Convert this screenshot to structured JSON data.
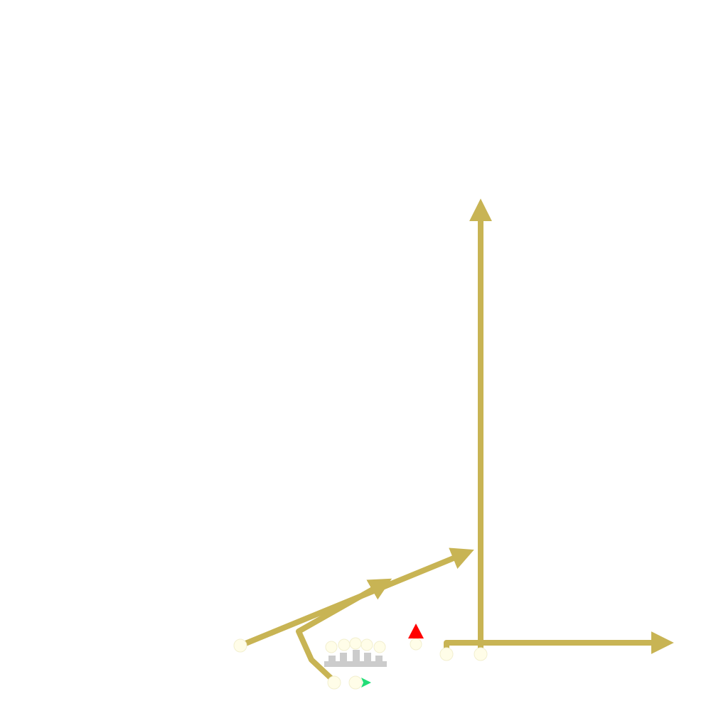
{
  "diagram": {
    "colors": {
      "background": "#ffffff",
      "route": "#c8b454",
      "node": "#fffde8",
      "node_outline": "#f2efcf",
      "defender": "#cccccc",
      "ball_marker": "#ff0000",
      "player_marker": "#22dd77"
    },
    "routes": [
      {
        "name": "route-vertical",
        "style": "arrow"
      },
      {
        "name": "route-flat-right",
        "style": "arrow"
      },
      {
        "name": "route-long-diagonal",
        "style": "arrow"
      },
      {
        "name": "route-curl-diagonal",
        "style": "arrow"
      }
    ],
    "markers": {
      "ball": "red-triangle",
      "player": "green-triangle"
    }
  }
}
